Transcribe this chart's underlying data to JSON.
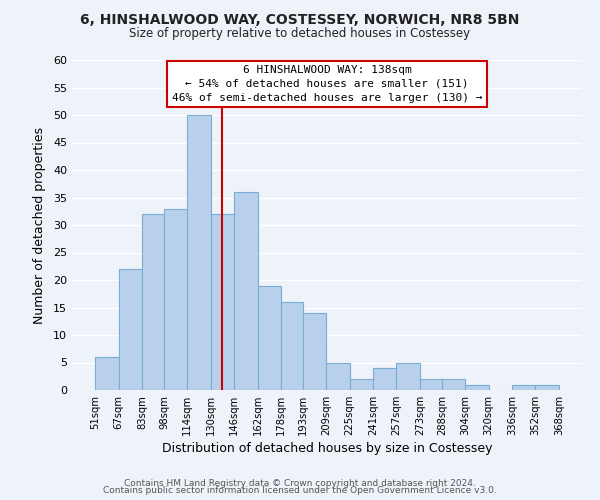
{
  "title": "6, HINSHALWOOD WAY, COSTESSEY, NORWICH, NR8 5BN",
  "subtitle": "Size of property relative to detached houses in Costessey",
  "xlabel": "Distribution of detached houses by size in Costessey",
  "ylabel": "Number of detached properties",
  "bar_color": "#b8d0eb",
  "bar_edge_color": "#7aadd4",
  "bins": [
    51,
    67,
    83,
    98,
    114,
    130,
    146,
    162,
    178,
    193,
    209,
    225,
    241,
    257,
    273,
    288,
    304,
    320,
    336,
    352,
    368
  ],
  "counts": [
    6,
    22,
    32,
    33,
    50,
    32,
    36,
    19,
    16,
    14,
    5,
    2,
    4,
    5,
    2,
    2,
    1,
    0,
    1,
    1
  ],
  "tick_labels": [
    "51sqm",
    "67sqm",
    "83sqm",
    "98sqm",
    "114sqm",
    "130sqm",
    "146sqm",
    "162sqm",
    "178sqm",
    "193sqm",
    "209sqm",
    "225sqm",
    "241sqm",
    "257sqm",
    "273sqm",
    "288sqm",
    "304sqm",
    "320sqm",
    "336sqm",
    "352sqm",
    "368sqm"
  ],
  "ylim": [
    0,
    60
  ],
  "yticks": [
    0,
    5,
    10,
    15,
    20,
    25,
    30,
    35,
    40,
    45,
    50,
    55,
    60
  ],
  "vline_x": 138,
  "vline_color": "#cc0000",
  "annotation_title": "6 HINSHALWOOD WAY: 138sqm",
  "annotation_line1": "← 54% of detached houses are smaller (151)",
  "annotation_line2": "46% of semi-detached houses are larger (130) →",
  "annotation_box_color": "#ffffff",
  "annotation_box_edge": "#cc0000",
  "footer1": "Contains HM Land Registry data © Crown copyright and database right 2024.",
  "footer2": "Contains public sector information licensed under the Open Government Licence v3.0.",
  "background_color": "#eef2f9",
  "grid_color": "#ffffff"
}
